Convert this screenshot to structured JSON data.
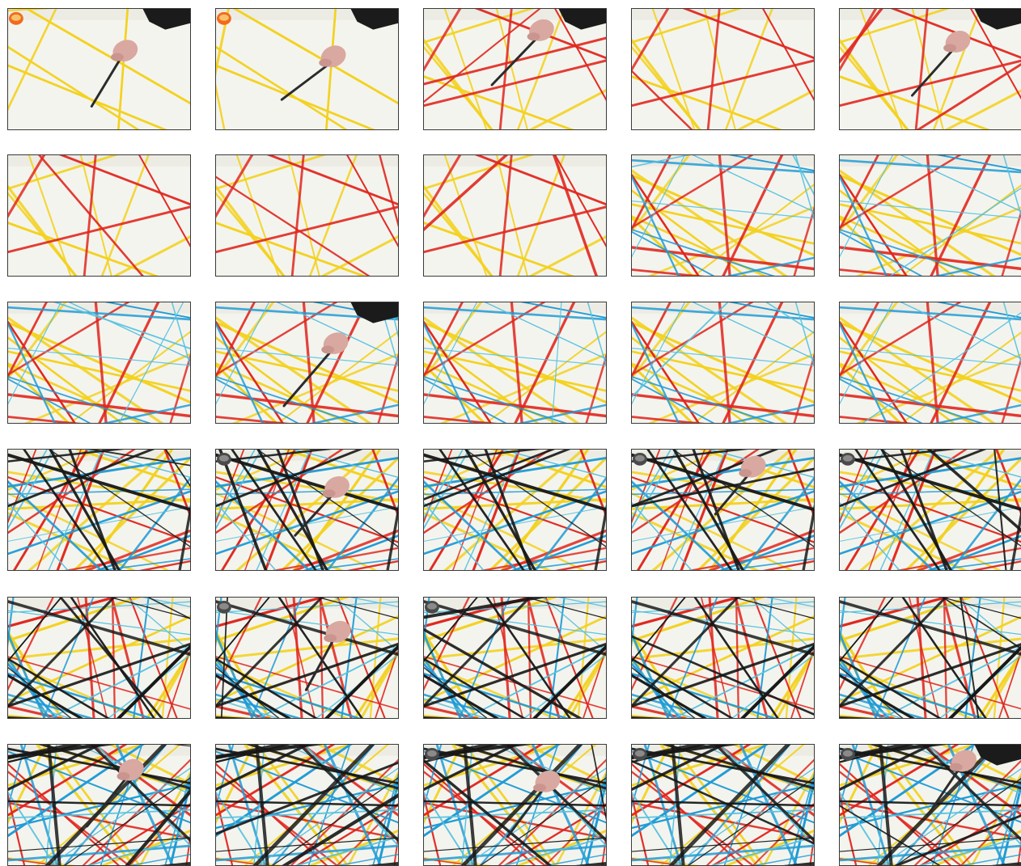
{
  "photo_grid": {
    "rows": 6,
    "columns": 5,
    "colors": {
      "paper": "#f4f4ee",
      "paper_shadow": "#e6e6de",
      "yellow": "#f3d21f",
      "red": "#e0271f",
      "blue": "#1f9bd6",
      "cyan": "#56c2e0",
      "black": "#171717",
      "hand_skin": "#d9a8a0",
      "sleeve": "#1b1b1b",
      "brush": "#2b2b2b",
      "paint_pot": "#f26a1e"
    },
    "frames": [
      {
        "index": 1,
        "stage": 1,
        "hand": true,
        "sleeve": true,
        "pot": true
      },
      {
        "index": 2,
        "stage": 1,
        "hand": true,
        "sleeve": true,
        "pot": true
      },
      {
        "index": 3,
        "stage": 2,
        "hand": true,
        "sleeve": true,
        "pot": false
      },
      {
        "index": 4,
        "stage": 2,
        "hand": false,
        "sleeve": false,
        "pot": false
      },
      {
        "index": 5,
        "stage": 2,
        "hand": true,
        "sleeve": true,
        "pot": false
      },
      {
        "index": 6,
        "stage": 2,
        "hand": false,
        "sleeve": false,
        "pot": false
      },
      {
        "index": 7,
        "stage": 2,
        "hand": false,
        "sleeve": false,
        "pot": false
      },
      {
        "index": 8,
        "stage": 2,
        "hand": false,
        "sleeve": false,
        "pot": false
      },
      {
        "index": 9,
        "stage": 3,
        "hand": false,
        "sleeve": false,
        "pot": false
      },
      {
        "index": 10,
        "stage": 3,
        "hand": false,
        "sleeve": false,
        "pot": false
      },
      {
        "index": 11,
        "stage": 3,
        "hand": false,
        "sleeve": false,
        "pot": false
      },
      {
        "index": 12,
        "stage": 3,
        "hand": true,
        "sleeve": true,
        "pot": false
      },
      {
        "index": 13,
        "stage": 3,
        "hand": false,
        "sleeve": false,
        "pot": false
      },
      {
        "index": 14,
        "stage": 3,
        "hand": false,
        "sleeve": false,
        "pot": false
      },
      {
        "index": 15,
        "stage": 3,
        "hand": false,
        "sleeve": false,
        "pot": false
      },
      {
        "index": 16,
        "stage": 4,
        "hand": false,
        "sleeve": false,
        "pot": false
      },
      {
        "index": 17,
        "stage": 4,
        "hand": true,
        "sleeve": false,
        "pot": true
      },
      {
        "index": 18,
        "stage": 4,
        "hand": false,
        "sleeve": false,
        "pot": false
      },
      {
        "index": 19,
        "stage": 4,
        "hand": true,
        "sleeve": false,
        "pot": true
      },
      {
        "index": 20,
        "stage": 4,
        "hand": false,
        "sleeve": false,
        "pot": true
      },
      {
        "index": 21,
        "stage": 5,
        "hand": false,
        "sleeve": false,
        "pot": false
      },
      {
        "index": 22,
        "stage": 5,
        "hand": true,
        "sleeve": false,
        "pot": true
      },
      {
        "index": 23,
        "stage": 5,
        "hand": false,
        "sleeve": false,
        "pot": true
      },
      {
        "index": 24,
        "stage": 5,
        "hand": false,
        "sleeve": false,
        "pot": false
      },
      {
        "index": 25,
        "stage": 5,
        "hand": false,
        "sleeve": false,
        "pot": false
      },
      {
        "index": 26,
        "stage": 6,
        "hand": true,
        "sleeve": false,
        "pot": false
      },
      {
        "index": 27,
        "stage": 6,
        "hand": false,
        "sleeve": false,
        "pot": false
      },
      {
        "index": 28,
        "stage": 6,
        "hand": true,
        "sleeve": false,
        "pot": true
      },
      {
        "index": 29,
        "stage": 6,
        "hand": false,
        "sleeve": false,
        "pot": true
      },
      {
        "index": 30,
        "stage": 6,
        "hand": true,
        "sleeve": true,
        "pot": true
      }
    ]
  }
}
